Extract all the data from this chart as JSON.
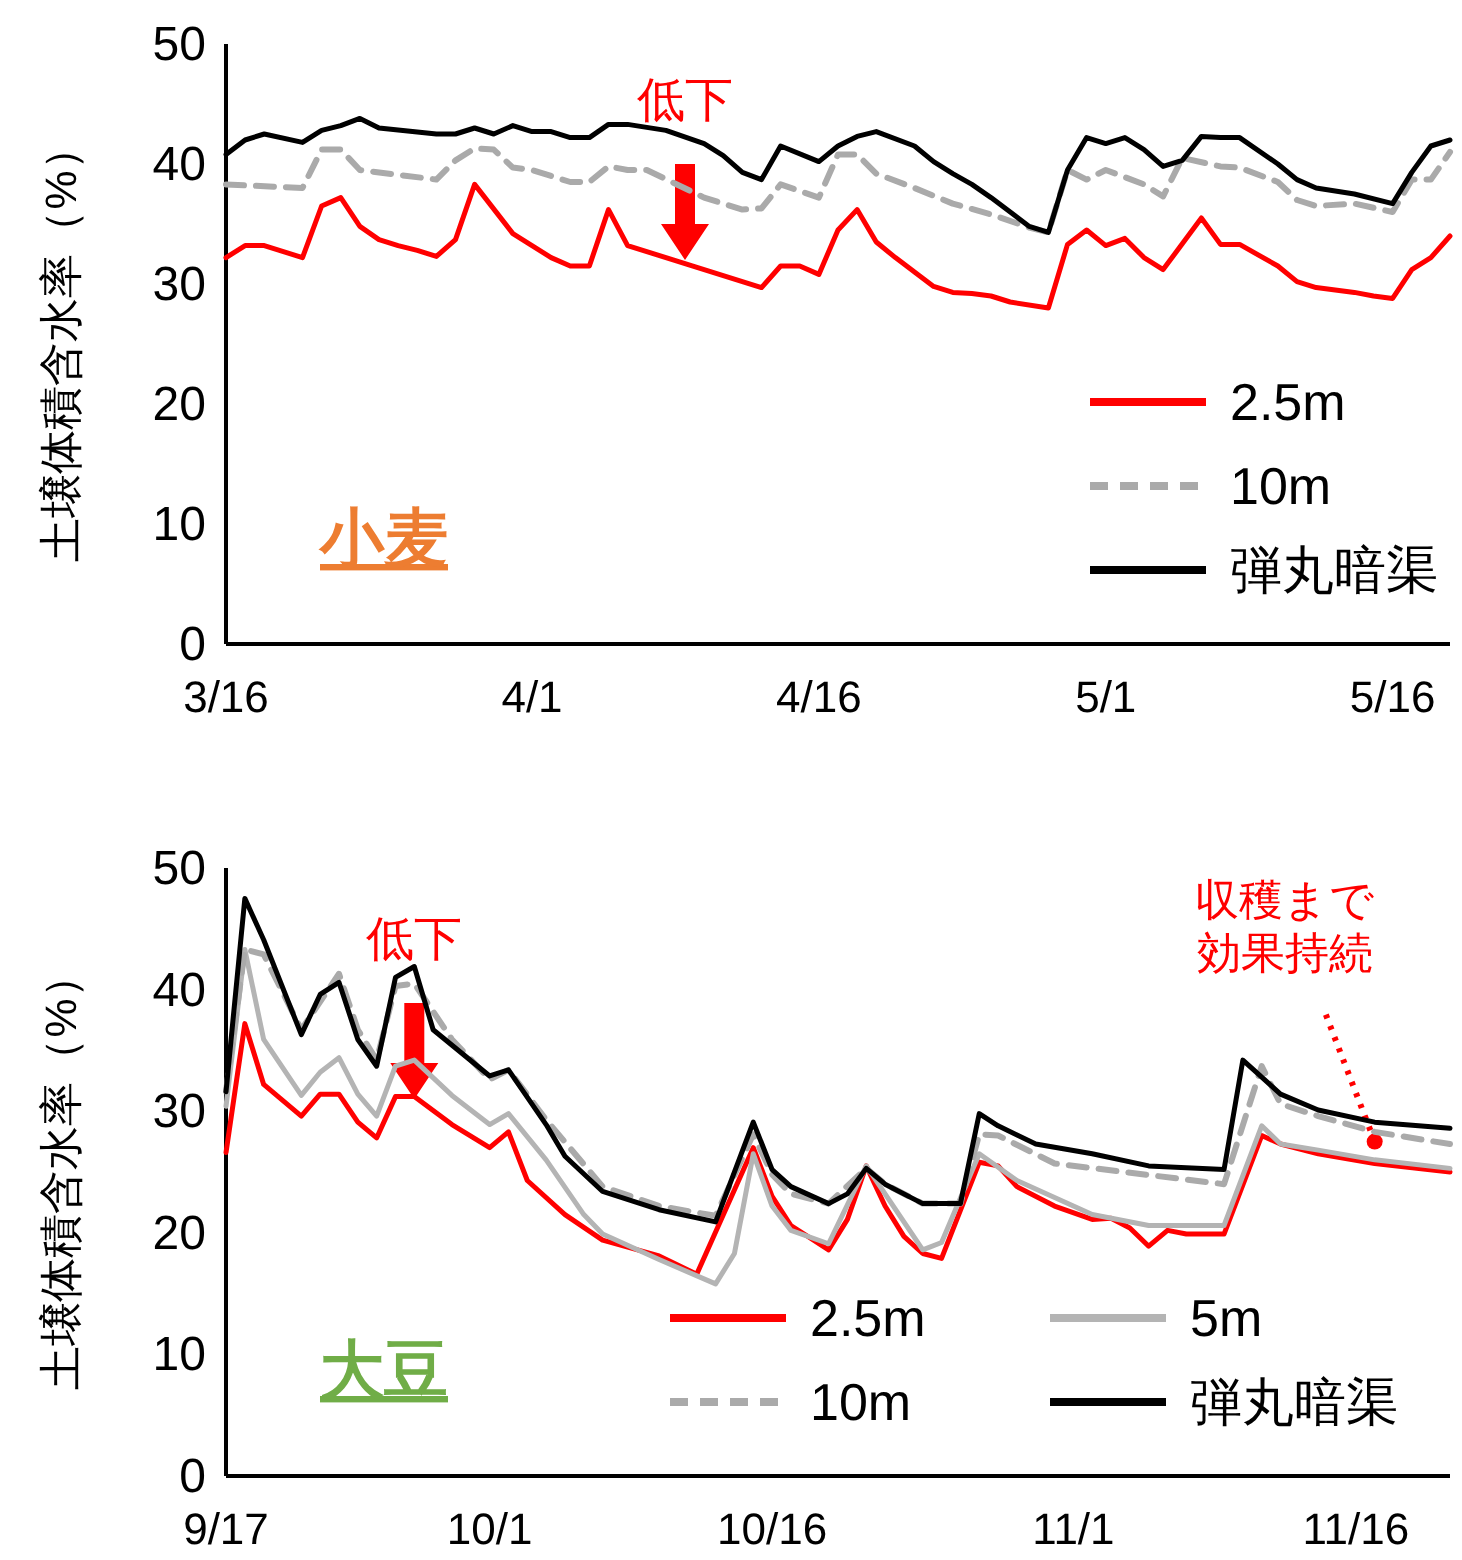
{
  "chart_data": [
    {
      "type": "line",
      "title": "小麦",
      "ylabel": "土壌体積含水率（%）",
      "xlim": [
        "--03-16",
        "--05-19"
      ],
      "ylim": [
        0,
        50
      ],
      "yticks": [
        0,
        10,
        20,
        30,
        40,
        50
      ],
      "xticks": [
        {
          "value": "--03-16",
          "label": "3/16"
        },
        {
          "value": "--04-01",
          "label": "4/1"
        },
        {
          "value": "--04-16",
          "label": "4/16"
        },
        {
          "value": "--05-01",
          "label": "5/1"
        },
        {
          "value": "--05-16",
          "label": "5/16"
        }
      ],
      "legend": "bottom right",
      "grid": false,
      "marker": "none",
      "annotations": [
        {
          "text": "低下",
          "x": "--04-09",
          "y": 32
        }
      ],
      "series": [
        {
          "name": "2.5m",
          "color": "#ff0000",
          "line_style": "solid",
          "x": [
            "--03-16",
            "--03-17",
            "--03-18",
            "--03-20",
            "--03-21",
            "--03-22",
            "--03-23",
            "--03-24",
            "--03-25",
            "--03-26",
            "--03-27",
            "--03-28",
            "--03-29",
            "--03-31",
            "--04-01",
            "--04-02",
            "--04-03",
            "--04-04",
            "--04-05",
            "--04-06",
            "--04-10",
            "--04-13",
            "--04-14",
            "--04-15",
            "--04-16",
            "--04-17",
            "--04-18",
            "--04-19",
            "--04-20",
            "--04-22",
            "--04-23",
            "--04-24",
            "--04-25",
            "--04-26",
            "--04-28",
            "--04-29",
            "--04-30",
            "--05-01",
            "--05-02",
            "--05-03",
            "--05-04",
            "--05-06",
            "--05-07",
            "--05-08",
            "--05-10",
            "--05-11",
            "--05-12",
            "--05-14",
            "--05-15",
            "--05-16",
            "--05-17",
            "--05-18",
            "--05-19"
          ],
          "values": [
            32.2,
            33.2,
            33.2,
            32.2,
            36.5,
            37.2,
            34.8,
            33.7,
            33.2,
            32.8,
            32.3,
            33.7,
            38.3,
            34.2,
            33.2,
            32.2,
            31.5,
            31.5,
            36.2,
            33.2,
            31.2,
            29.7,
            31.5,
            31.5,
            30.8,
            34.5,
            36.2,
            33.5,
            32.2,
            29.8,
            29.3,
            29.2,
            29,
            28.5,
            28,
            33.3,
            34.5,
            33.2,
            33.8,
            32.2,
            31.2,
            35.5,
            33.3,
            33.3,
            31.5,
            30.2,
            29.7,
            29.3,
            29,
            28.8,
            31.2,
            32.2,
            34
          ]
        },
        {
          "name": "10m",
          "color": "#aaaaaa",
          "line_style": "dashed",
          "x": [
            "--03-16",
            "--03-20",
            "--03-21",
            "--03-22",
            "--03-23",
            "--03-27",
            "--03-28",
            "--03-29",
            "--03-30",
            "--03-31",
            "--04-01",
            "--04-02",
            "--04-03",
            "--04-04",
            "--04-05",
            "--04-06",
            "--04-07",
            "--04-10",
            "--04-12",
            "--04-13",
            "--04-14",
            "--04-16",
            "--04-17",
            "--04-18",
            "--04-19",
            "--04-21",
            "--04-23",
            "--04-25",
            "--04-27",
            "--04-28",
            "--04-29",
            "--04-30",
            "--05-01",
            "--05-03",
            "--05-04",
            "--05-05",
            "--05-07",
            "--05-08",
            "--05-10",
            "--05-11",
            "--05-12",
            "--05-14",
            "--05-16",
            "--05-17",
            "--05-18",
            "--05-19"
          ],
          "values": [
            38.3,
            38,
            41.2,
            41.2,
            39.5,
            38.7,
            40.3,
            41.3,
            41.2,
            39.7,
            39.5,
            39,
            38.5,
            38.5,
            39.8,
            39.5,
            39.5,
            37.2,
            36.2,
            36.3,
            38.3,
            37.2,
            40.8,
            40.8,
            39.2,
            38,
            36.7,
            35.8,
            34.7,
            34.3,
            39.5,
            38.7,
            39.5,
            38.3,
            37.3,
            40.5,
            39.8,
            39.7,
            38.5,
            37,
            36.5,
            36.7,
            36,
            38.7,
            38.7,
            41
          ]
        },
        {
          "name": "弾丸暗渠",
          "color": "#000000",
          "line_style": "solid",
          "x": [
            "--03-16",
            "--03-17",
            "--03-18",
            "--03-20",
            "--03-21",
            "--03-22",
            "--03-23",
            "--03-24",
            "--03-27",
            "--03-28",
            "--03-29",
            "--03-30",
            "--03-31",
            "--04-01",
            "--04-02",
            "--04-03",
            "--04-04",
            "--04-05",
            "--04-06",
            "--04-08",
            "--04-10",
            "--04-11",
            "--04-12",
            "--04-13",
            "--04-14",
            "--04-16",
            "--04-17",
            "--04-18",
            "--04-19",
            "--04-21",
            "--04-22",
            "--04-23",
            "--04-24",
            "--04-25",
            "--04-27",
            "--04-28",
            "--04-29",
            "--04-30",
            "--05-01",
            "--05-02",
            "--05-03",
            "--05-04",
            "--05-05",
            "--05-06",
            "--05-07",
            "--05-08",
            "--05-10",
            "--05-11",
            "--05-12",
            "--05-14",
            "--05-16",
            "--05-17",
            "--05-18",
            "--05-19"
          ],
          "values": [
            40.8,
            42,
            42.5,
            41.8,
            42.8,
            43.2,
            43.8,
            43,
            42.5,
            42.5,
            43,
            42.5,
            43.2,
            42.7,
            42.7,
            42.2,
            42.2,
            43.3,
            43.3,
            42.8,
            41.7,
            40.7,
            39.3,
            38.7,
            41.5,
            40.2,
            41.5,
            42.3,
            42.7,
            41.5,
            40.2,
            39.2,
            38.3,
            37.2,
            34.8,
            34.3,
            39.5,
            42.2,
            41.7,
            42.2,
            41.2,
            39.8,
            40.3,
            42.3,
            42.2,
            42.2,
            40,
            38.7,
            38,
            37.5,
            36.7,
            39.3,
            41.5,
            42
          ]
        }
      ]
    },
    {
      "type": "line",
      "title": "大豆",
      "ylabel": "土壌体積含水率（%）",
      "xlim": [
        "--09-17",
        "--11-21"
      ],
      "ylim": [
        0,
        50
      ],
      "yticks": [
        0,
        10,
        20,
        30,
        40,
        50
      ],
      "xticks": [
        {
          "value": "--09-17",
          "label": "9/17"
        },
        {
          "value": "--10-01",
          "label": "10/1"
        },
        {
          "value": "--10-16",
          "label": "10/16"
        },
        {
          "value": "--11-01",
          "label": "11/1"
        },
        {
          "value": "--11-16",
          "label": "11/16"
        }
      ],
      "legend": "bottom right",
      "grid": false,
      "marker": "none",
      "annotations": [
        {
          "text": "低下",
          "x": "--09-27",
          "y": 31
        },
        {
          "text": "収穫まで効果持続",
          "x": "--11-17",
          "y": 27.5
        }
      ],
      "series": [
        {
          "name": "2.5m",
          "color": "#ff0000",
          "line_style": "solid",
          "x": [
            "--09-17",
            "--09-18",
            "--09-19",
            "--09-21",
            "--09-22",
            "--09-23",
            "--09-24",
            "--09-25",
            "--09-26",
            "--09-27",
            "--09-29",
            "--10-01",
            "--10-02",
            "--10-03",
            "--10-05",
            "--10-07",
            "--10-10",
            "--10-12",
            "--10-15",
            "--10-16",
            "--10-17",
            "--10-19",
            "--10-20",
            "--10-21",
            "--10-22",
            "--10-23",
            "--10-24",
            "--10-25",
            "--10-27",
            "--10-28",
            "--10-29",
            "--10-31",
            "--11-02",
            "--11-03",
            "--11-04",
            "--11-05",
            "--11-06",
            "--11-07",
            "--11-09",
            "--11-11",
            "--11-12",
            "--11-14",
            "--11-17",
            "--11-21"
          ],
          "values": [
            26.6,
            37.2,
            32.2,
            29.6,
            31.4,
            31.4,
            29.1,
            27.8,
            31.2,
            31.2,
            28.9,
            27,
            28.3,
            24.3,
            21.5,
            19.4,
            18.1,
            16.6,
            27,
            23,
            20.6,
            18.6,
            21.1,
            25.5,
            22.2,
            19.7,
            18.3,
            17.9,
            25.8,
            25.5,
            23.8,
            22.2,
            21.1,
            21.2,
            20.4,
            18.9,
            20.2,
            19.9,
            19.9,
            28,
            27.3,
            26.5,
            25.7,
            25
          ]
        },
        {
          "name": "5m",
          "color": "#b4b4b4",
          "line_style": "solid",
          "x": [
            "--09-17",
            "--09-18",
            "--09-19",
            "--09-21",
            "--09-22",
            "--09-23",
            "--09-24",
            "--09-25",
            "--09-26",
            "--09-27",
            "--09-29",
            "--10-01",
            "--10-02",
            "--10-04",
            "--10-06",
            "--10-07",
            "--10-10",
            "--10-13",
            "--10-14",
            "--10-15",
            "--10-16",
            "--10-17",
            "--10-19",
            "--10-21",
            "--10-24",
            "--10-25",
            "--10-27",
            "--10-29",
            "--11-02",
            "--11-05",
            "--11-09",
            "--11-11",
            "--11-12",
            "--11-14",
            "--11-17",
            "--11-21"
          ],
          "values": [
            30.4,
            43.3,
            35.9,
            31.3,
            33.2,
            34.4,
            31.4,
            29.6,
            33.7,
            34.2,
            31.3,
            28.9,
            29.8,
            26,
            21.5,
            19.9,
            17.8,
            15.8,
            18.3,
            26.5,
            22.2,
            20.2,
            19.1,
            25.5,
            18.6,
            19.2,
            26.5,
            24.3,
            21.5,
            20.6,
            20.6,
            28.8,
            27.3,
            26.8,
            26,
            25.3
          ]
        },
        {
          "name": "10m",
          "color": "#aaaaaa",
          "line_style": "dashed",
          "x": [
            "--09-17",
            "--09-18",
            "--09-19",
            "--09-21",
            "--09-23",
            "--09-24",
            "--09-25",
            "--09-26",
            "--09-27",
            "--09-29",
            "--10-01",
            "--10-02",
            "--10-04",
            "--10-07",
            "--10-10",
            "--10-13",
            "--10-15",
            "--10-16",
            "--10-17",
            "--10-19",
            "--10-21",
            "--10-22",
            "--10-24",
            "--10-26",
            "--10-27",
            "--10-28",
            "--10-31",
            "--11-09",
            "--11-11",
            "--11-12",
            "--11-14",
            "--11-17",
            "--11-21"
          ],
          "values": [
            31.6,
            43.3,
            42.9,
            36.7,
            41.3,
            36.7,
            34.2,
            40.3,
            40.5,
            35.9,
            32.6,
            33.4,
            29.3,
            23.8,
            22.2,
            21.4,
            28.1,
            24.8,
            23.2,
            22.4,
            25.3,
            24,
            22.4,
            22.4,
            28.1,
            28,
            25.7,
            24,
            33.7,
            30.6,
            29.6,
            28.3,
            27.3
          ]
        },
        {
          "name": "弾丸暗渠",
          "color": "#000000",
          "line_style": "solid",
          "x": [
            "--09-17",
            "--09-18",
            "--09-19",
            "--09-21",
            "--09-22",
            "--09-23",
            "--09-24",
            "--09-25",
            "--09-26",
            "--09-27",
            "--09-28",
            "--10-01",
            "--10-02",
            "--10-04",
            "--10-05",
            "--10-07",
            "--10-10",
            "--10-13",
            "--10-15",
            "--10-16",
            "--10-17",
            "--10-19",
            "--10-20",
            "--10-21",
            "--10-22",
            "--10-24",
            "--10-26",
            "--10-27",
            "--10-28",
            "--10-30",
            "--11-02",
            "--11-05",
            "--11-09",
            "--11-10",
            "--11-12",
            "--11-14",
            "--11-17",
            "--11-21"
          ],
          "values": [
            31.6,
            47.5,
            44.1,
            36.3,
            39.6,
            40.6,
            35.9,
            33.7,
            41,
            41.9,
            36.7,
            32.9,
            33.4,
            28.9,
            26.3,
            23.4,
            21.9,
            20.9,
            29.1,
            25.2,
            23.8,
            22.4,
            23.2,
            25.3,
            24,
            22.4,
            22.4,
            29.8,
            28.8,
            27.3,
            26.5,
            25.5,
            25.2,
            34.2,
            31.4,
            30.1,
            29.1,
            28.6
          ]
        }
      ]
    }
  ]
}
